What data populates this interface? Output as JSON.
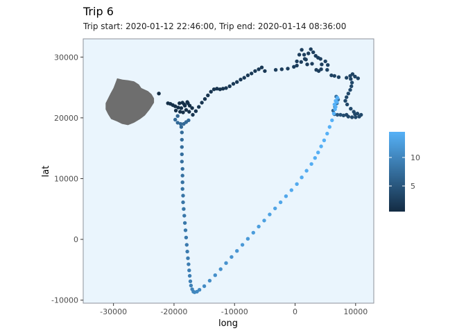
{
  "chart_data": {
    "type": "scatter",
    "title": "Trip 6",
    "subtitle": "Trip start: 2020-01-12 22:46:00, Trip end: 2020-01-14 08:36:00",
    "xlabel": "long",
    "ylabel": "lat",
    "xlim": [
      -35000,
      13000
    ],
    "ylim": [
      -10500,
      33000
    ],
    "xticks": [
      -30000,
      -20000,
      -10000,
      0,
      10000
    ],
    "yticks": [
      -10000,
      0,
      10000,
      20000,
      30000
    ],
    "xtick_labels": [
      "-30000",
      "-20000",
      "-10000",
      "0",
      "10000"
    ],
    "ytick_labels": [
      "-10000",
      "0",
      "10000",
      "20000",
      "30000"
    ],
    "panel_background": "#eaf5fd",
    "panel_border": "#8c9199",
    "land_color": "#6e6e6e",
    "color_scale": {
      "low": "#132b43",
      "high": "#56b1f7",
      "min": 0.5,
      "max": 14.5
    },
    "legend": {
      "position": "right",
      "breaks": [
        5,
        10
      ],
      "labels": [
        "5",
        "10"
      ]
    },
    "land": [
      [
        -29400,
        26500
      ],
      [
        -28500,
        26300
      ],
      [
        -27600,
        26200
      ],
      [
        -26600,
        26000
      ],
      [
        -25800,
        25500
      ],
      [
        -25400,
        24900
      ],
      [
        -24300,
        24400
      ],
      [
        -23700,
        23900
      ],
      [
        -23300,
        23200
      ],
      [
        -23300,
        22500
      ],
      [
        -24000,
        21400
      ],
      [
        -24800,
        20400
      ],
      [
        -25600,
        19800
      ],
      [
        -26600,
        19200
      ],
      [
        -27600,
        18800
      ],
      [
        -28600,
        19000
      ],
      [
        -29400,
        19400
      ],
      [
        -30400,
        19800
      ],
      [
        -30900,
        20600
      ],
      [
        -31300,
        21400
      ],
      [
        -31300,
        22400
      ],
      [
        -30900,
        23200
      ],
      [
        -30500,
        24000
      ],
      [
        -30000,
        24900
      ],
      [
        -29700,
        25700
      ]
    ],
    "points": [
      [
        -22500,
        24000,
        0.6
      ],
      [
        -21000,
        22400,
        1.0
      ],
      [
        -20600,
        22300,
        1.0
      ],
      [
        -20200,
        22100,
        1.0
      ],
      [
        -19800,
        21900,
        1.0
      ],
      [
        -19300,
        21700,
        1.0
      ],
      [
        -18800,
        21600,
        1.0
      ],
      [
        -18300,
        22200,
        1.0
      ],
      [
        -17800,
        22600,
        1.0
      ],
      [
        -17400,
        22000,
        1.0
      ],
      [
        -17000,
        21600,
        1.0
      ],
      [
        -18600,
        22500,
        1.0
      ],
      [
        -19100,
        22400,
        1.0
      ],
      [
        -18000,
        21300,
        1.0
      ],
      [
        -18500,
        20900,
        1.0
      ],
      [
        -19000,
        21000,
        1.0
      ],
      [
        -19700,
        21200,
        1.0
      ],
      [
        -17500,
        21000,
        1.0
      ],
      [
        -17700,
        22400,
        1.0
      ],
      [
        -18200,
        22000,
        1.0
      ],
      [
        -16900,
        20500,
        1.5
      ],
      [
        -16400,
        21100,
        1.5
      ],
      [
        -15900,
        21800,
        1.5
      ],
      [
        -15400,
        22500,
        1.5
      ],
      [
        -14900,
        23100,
        1.5
      ],
      [
        -14400,
        23700,
        1.5
      ],
      [
        -13900,
        24300,
        1.5
      ],
      [
        -13400,
        24700,
        1.5
      ],
      [
        -12900,
        24800,
        1.5
      ],
      [
        -12400,
        24700,
        1.5
      ],
      [
        -11900,
        24800,
        1.5
      ],
      [
        -11400,
        24900,
        2.0
      ],
      [
        -10800,
        25200,
        2.0
      ],
      [
        -10200,
        25600,
        2.0
      ],
      [
        -9600,
        25900,
        2.0
      ],
      [
        -9000,
        26300,
        2.0
      ],
      [
        -8400,
        26600,
        2.0
      ],
      [
        -7800,
        27000,
        2.0
      ],
      [
        -7200,
        27300,
        2.0
      ],
      [
        -6600,
        27700,
        2.0
      ],
      [
        -6000,
        28000,
        2.0
      ],
      [
        -5500,
        28300,
        2.0
      ],
      [
        -5000,
        27700,
        2.0
      ],
      [
        -3200,
        27900,
        2.5
      ],
      [
        -2200,
        28000,
        2.5
      ],
      [
        -1200,
        28100,
        2.5
      ],
      [
        -200,
        28400,
        2.5
      ],
      [
        300,
        29300,
        2.5
      ],
      [
        700,
        30400,
        2.5
      ],
      [
        1100,
        31200,
        2.5
      ],
      [
        1500,
        30400,
        2.5
      ],
      [
        1800,
        29600,
        2.5
      ],
      [
        2200,
        30600,
        2.5
      ],
      [
        2600,
        31300,
        2.5
      ],
      [
        3000,
        30800,
        2.5
      ],
      [
        3400,
        30200,
        2.5
      ],
      [
        3800,
        29900,
        2.5
      ],
      [
        4200,
        29700,
        2.5
      ],
      [
        4400,
        28800,
        2.5
      ],
      [
        4300,
        28000,
        2.5
      ],
      [
        3900,
        27700,
        2.5
      ],
      [
        3500,
        27900,
        2.5
      ],
      [
        1000,
        29200,
        2.5
      ],
      [
        1600,
        29700,
        2.5
      ],
      [
        2000,
        28800,
        2.5
      ],
      [
        2800,
        28900,
        2.5
      ],
      [
        300,
        28600,
        2.5
      ],
      [
        5000,
        29300,
        3.0
      ],
      [
        5400,
        28700,
        3.0
      ],
      [
        5300,
        27900,
        3.0
      ],
      [
        6000,
        27000,
        3.0
      ],
      [
        6500,
        26900,
        3.0
      ],
      [
        7200,
        26700,
        3.0
      ],
      [
        8500,
        26600,
        3.0
      ],
      [
        9100,
        26900,
        3.0
      ],
      [
        9500,
        27200,
        3.0
      ],
      [
        9900,
        26800,
        3.0
      ],
      [
        10400,
        26500,
        3.0
      ],
      [
        9200,
        26400,
        3.0
      ],
      [
        9400,
        25800,
        3.5
      ],
      [
        9300,
        25200,
        3.5
      ],
      [
        9100,
        24600,
        3.5
      ],
      [
        8800,
        24000,
        3.5
      ],
      [
        8500,
        23400,
        3.5
      ],
      [
        8300,
        22800,
        3.5
      ],
      [
        8600,
        22200,
        3.5
      ],
      [
        9200,
        21500,
        3.5
      ],
      [
        9700,
        21000,
        3.5
      ],
      [
        10300,
        20700,
        3.5
      ],
      [
        10900,
        20500,
        3.5
      ],
      [
        10600,
        20200,
        3.5
      ],
      [
        10000,
        20100,
        3.5
      ],
      [
        9400,
        20100,
        3.5
      ],
      [
        8800,
        20200,
        3.5
      ],
      [
        8500,
        20500,
        3.5
      ],
      [
        9900,
        20600,
        3.5
      ],
      [
        8000,
        20400,
        4.0
      ],
      [
        7500,
        20500,
        4.5
      ],
      [
        7000,
        20500,
        5.0
      ],
      [
        6500,
        20600,
        5.5
      ],
      [
        6300,
        21200,
        6.0
      ],
      [
        6600,
        21800,
        6.5
      ],
      [
        6900,
        22400,
        7.0
      ],
      [
        7100,
        23000,
        7.5
      ],
      [
        6800,
        23500,
        8.0
      ],
      [
        -19400,
        20300,
        6.5
      ],
      [
        -19800,
        19700,
        7.0
      ],
      [
        -19400,
        19200,
        7.0
      ],
      [
        -18900,
        19000,
        7.0
      ],
      [
        -18400,
        19000,
        7.0
      ],
      [
        -18000,
        19300,
        7.0
      ],
      [
        -17600,
        19600,
        7.0
      ],
      [
        -18800,
        18500,
        7.0
      ],
      [
        -18700,
        17600,
        7.2
      ],
      [
        -18700,
        16400,
        7.3
      ],
      [
        -18700,
        15200,
        7.4
      ],
      [
        -18700,
        14000,
        7.5
      ],
      [
        -18700,
        12800,
        7.6
      ],
      [
        -18600,
        11600,
        7.7
      ],
      [
        -18600,
        10500,
        7.8
      ],
      [
        -18600,
        9400,
        7.9
      ],
      [
        -18600,
        8300,
        8.0
      ],
      [
        -18500,
        7200,
        8.1
      ],
      [
        -18500,
        6100,
        8.2
      ],
      [
        -18400,
        5000,
        8.3
      ],
      [
        -18300,
        3900,
        8.4
      ],
      [
        -18200,
        2700,
        8.5
      ],
      [
        -18100,
        1500,
        8.6
      ],
      [
        -18000,
        300,
        8.7
      ],
      [
        -17900,
        -900,
        8.8
      ],
      [
        -17800,
        -2000,
        8.9
      ],
      [
        -17700,
        -3100,
        9.0
      ],
      [
        -17600,
        -4100,
        9.1
      ],
      [
        -17500,
        -5100,
        9.2
      ],
      [
        -17400,
        -6000,
        9.3
      ],
      [
        -17300,
        -6900,
        9.4
      ],
      [
        -17200,
        -7600,
        9.5
      ],
      [
        -17000,
        -8200,
        9.6
      ],
      [
        -16800,
        -8600,
        9.7
      ],
      [
        -16600,
        -8700,
        10.0
      ],
      [
        -16200,
        -8600,
        10.2
      ],
      [
        -15800,
        -8300,
        10.3
      ],
      [
        -15000,
        -7700,
        10.5
      ],
      [
        -14100,
        -6800,
        10.7
      ],
      [
        -13200,
        -5900,
        10.9
      ],
      [
        -12300,
        -4900,
        11.1
      ],
      [
        -11400,
        -3900,
        11.3
      ],
      [
        -10500,
        -2900,
        11.5
      ],
      [
        -9600,
        -1900,
        11.7
      ],
      [
        -8700,
        -900,
        11.9
      ],
      [
        -7800,
        100,
        12.1
      ],
      [
        -6900,
        1100,
        12.3
      ],
      [
        -6000,
        2100,
        12.5
      ],
      [
        -5100,
        3100,
        12.7
      ],
      [
        -4200,
        4100,
        12.9
      ],
      [
        -3300,
        5100,
        13.1
      ],
      [
        -2400,
        6100,
        13.3
      ],
      [
        -1500,
        7100,
        13.5
      ],
      [
        -600,
        8100,
        13.7
      ],
      [
        300,
        9100,
        13.8
      ],
      [
        1100,
        10200,
        13.9
      ],
      [
        1900,
        11300,
        14.0
      ],
      [
        2700,
        12400,
        14.1
      ],
      [
        3300,
        13400,
        14.2
      ],
      [
        3800,
        14300,
        14.3
      ],
      [
        4300,
        15300,
        14.3
      ],
      [
        4800,
        16300,
        14.4
      ],
      [
        5300,
        17400,
        14.4
      ],
      [
        5700,
        18500,
        14.4
      ],
      [
        6100,
        19600,
        14.5
      ],
      [
        6400,
        20700,
        14.5
      ],
      [
        6700,
        21800,
        14.5
      ],
      [
        6900,
        22600,
        14.5
      ],
      [
        7000,
        23300,
        14.5
      ],
      [
        6700,
        22800,
        14.5
      ],
      [
        6500,
        22200,
        14.5
      ],
      [
        6600,
        21400,
        14.5
      ]
    ]
  }
}
